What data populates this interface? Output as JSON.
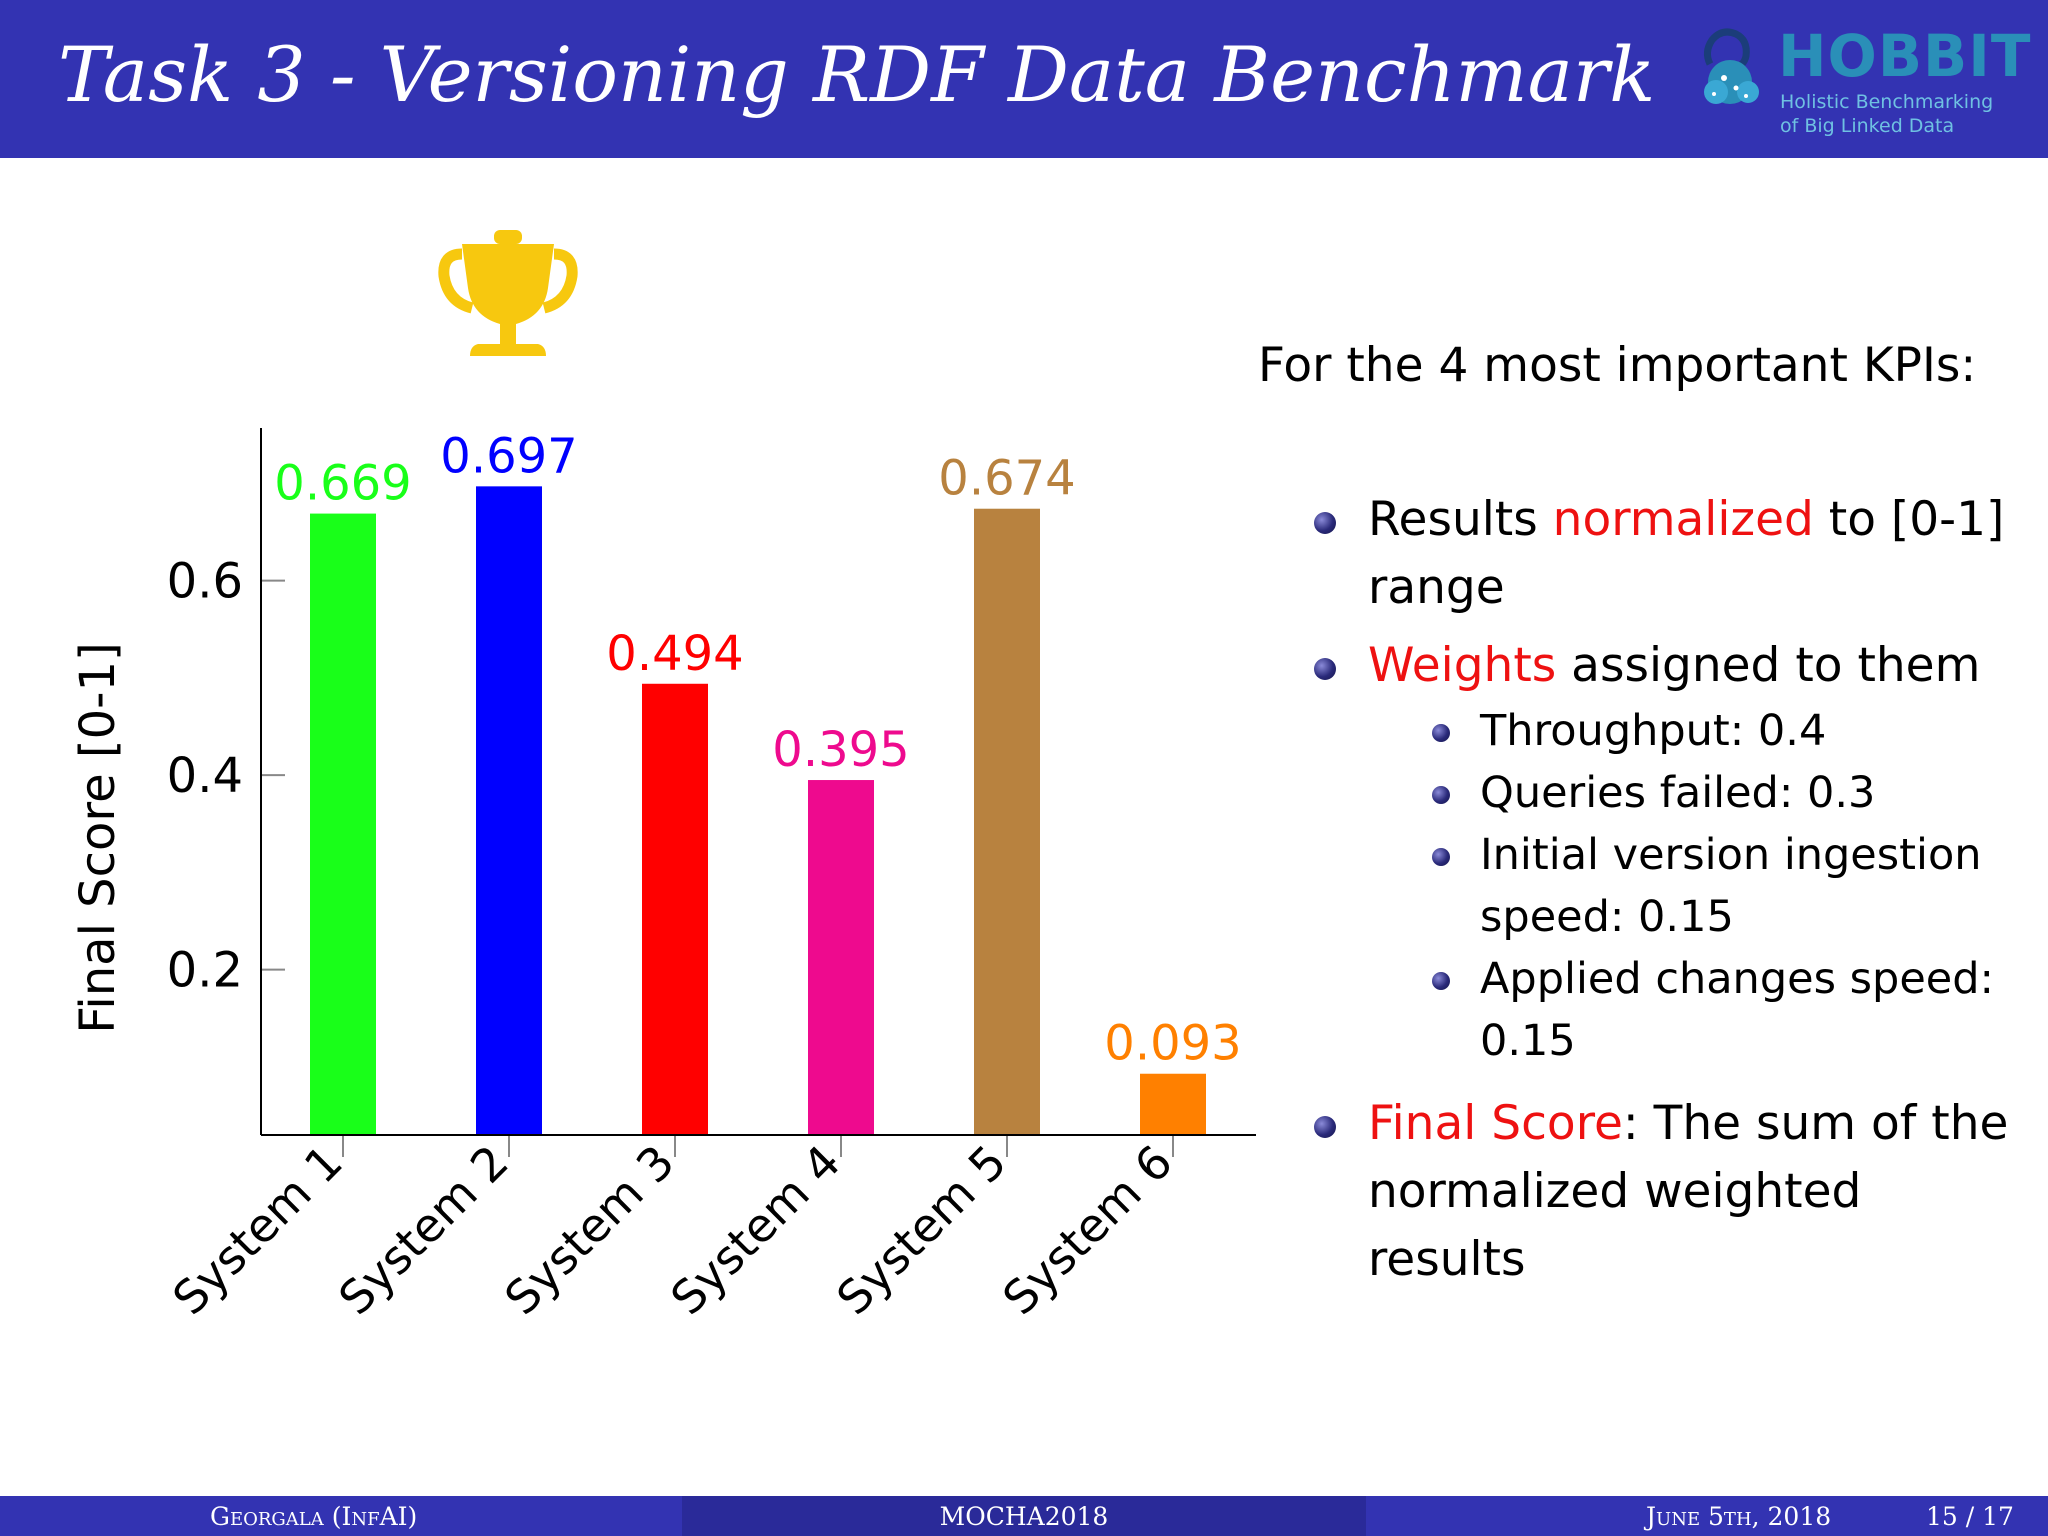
{
  "header": {
    "title": "Task 3 - Versioning RDF Data Benchmark",
    "logo": {
      "name": "HOBBIT",
      "tagline_1": "Holistic Benchmarking",
      "tagline_2": "of Big Linked Data"
    }
  },
  "icons": {
    "trophy": "trophy-icon",
    "logo": "hobbit-logo-icon"
  },
  "chart_data": {
    "type": "bar",
    "categories": [
      "System 1",
      "System 2",
      "System 3",
      "System 4",
      "System 5",
      "System 6"
    ],
    "values": [
      0.669,
      0.697,
      0.494,
      0.395,
      0.674,
      0.093
    ],
    "value_labels": [
      "0.669",
      "0.697",
      "0.494",
      "0.395",
      "0.674",
      "0.093"
    ],
    "colors": [
      "#19ff19",
      "#0000ff",
      "#ff0000",
      "#ee0a8e",
      "#b8823f",
      "#ff8000"
    ],
    "ylabel": "Final Score [0-1]",
    "xlabel": "",
    "ylim": [
      0.03,
      0.757
    ],
    "yticks": [
      0.2,
      0.4,
      0.6
    ],
    "ytick_labels": [
      "0.2",
      "0.4",
      "0.6"
    ],
    "winner_index": 1,
    "grid": false
  },
  "text": {
    "kpi_heading": "For the 4 most important KPIs:",
    "b1_pre": "Results ",
    "b1_red": "normalized",
    "b1_post": " to [0-1] range",
    "b2_red": "Weights",
    "b2_post": " assigned to them",
    "sub": [
      "Throughput: 0.4",
      "Queries failed: 0.3",
      "Initial version ingestion speed: 0.15",
      "Applied changes speed: 0.15"
    ],
    "b3_red": "Final Score",
    "b3_post": ": The sum of the normalized weighted results"
  },
  "footer": {
    "author": "Georgala (InfAI)",
    "event": "MOCHA2018",
    "date": "June 5th, 2018",
    "page": "15 / 17"
  }
}
